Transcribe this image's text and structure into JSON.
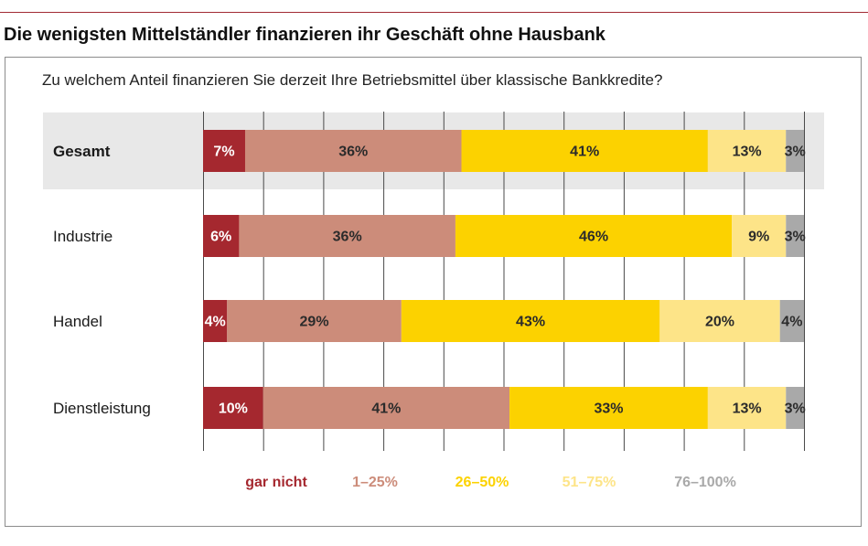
{
  "title": "Die wenigsten Mittelständler finanzieren ihr Geschäft ohne Hausbank",
  "question": "Zu welchem Anteil finanzieren Sie derzeit Ihre Betriebsmittel über klassische Bankkredite?",
  "chart_data": {
    "type": "bar",
    "orientation": "horizontal",
    "stacked": true,
    "percent": true,
    "categories": [
      "Gesamt",
      "Industrie",
      "Handel",
      "Dienstleistung"
    ],
    "highlighted_category": "Gesamt",
    "series": [
      {
        "name": "gar nicht",
        "color": "#a5282f",
        "label_color": "#ffffff",
        "values": [
          7,
          6,
          4,
          10
        ]
      },
      {
        "name": "1–25%",
        "color": "#cc8c7a",
        "label_color": "#2b2b2b",
        "values": [
          36,
          36,
          29,
          41
        ]
      },
      {
        "name": "26–50%",
        "color": "#fcd200",
        "label_color": "#2b2b2b",
        "values": [
          41,
          46,
          43,
          33
        ]
      },
      {
        "name": "51–75%",
        "color": "#fde488",
        "label_color": "#2b2b2b",
        "values": [
          13,
          9,
          20,
          13
        ]
      },
      {
        "name": "76–100%",
        "color": "#a9a9a9",
        "label_color": "#2b2b2b",
        "values": [
          3,
          3,
          4,
          3
        ]
      }
    ],
    "xlim": [
      0,
      100
    ],
    "grid": true,
    "legend_position": "bottom",
    "colors": {
      "highlight_band": "#e8e8e8",
      "gridline": "#4a4a4a"
    }
  }
}
